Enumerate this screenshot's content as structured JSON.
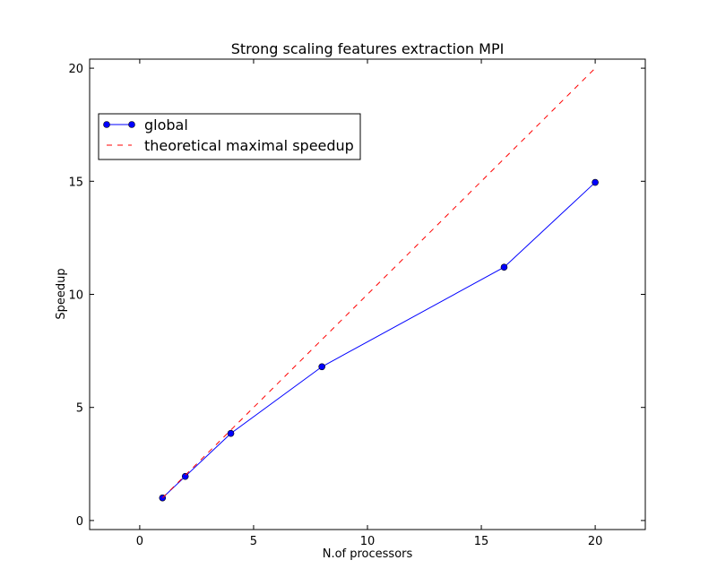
{
  "chart_data": {
    "type": "line",
    "title": "Strong scaling features extraction MPI",
    "xlabel": "N.of processors",
    "ylabel": "Speedup",
    "xlim": [
      -2.2,
      22.2
    ],
    "ylim": [
      -0.4,
      20.4
    ],
    "xticks": [
      0,
      5,
      10,
      15,
      20
    ],
    "yticks": [
      0,
      5,
      10,
      15,
      20
    ],
    "grid": false,
    "legend_position": "upper-left",
    "series": [
      {
        "name": "global",
        "style": "solid-with-markers",
        "color": "#0000ff",
        "x": [
          1,
          2,
          4,
          8,
          16,
          20
        ],
        "y": [
          1.0,
          1.95,
          3.85,
          6.8,
          11.2,
          14.95
        ]
      },
      {
        "name": "theoretical maximal speedup",
        "style": "dashed",
        "color": "#ff0000",
        "x": [
          1,
          2,
          4,
          8,
          16,
          20
        ],
        "y": [
          1,
          2,
          4,
          8,
          16,
          20
        ]
      }
    ]
  }
}
